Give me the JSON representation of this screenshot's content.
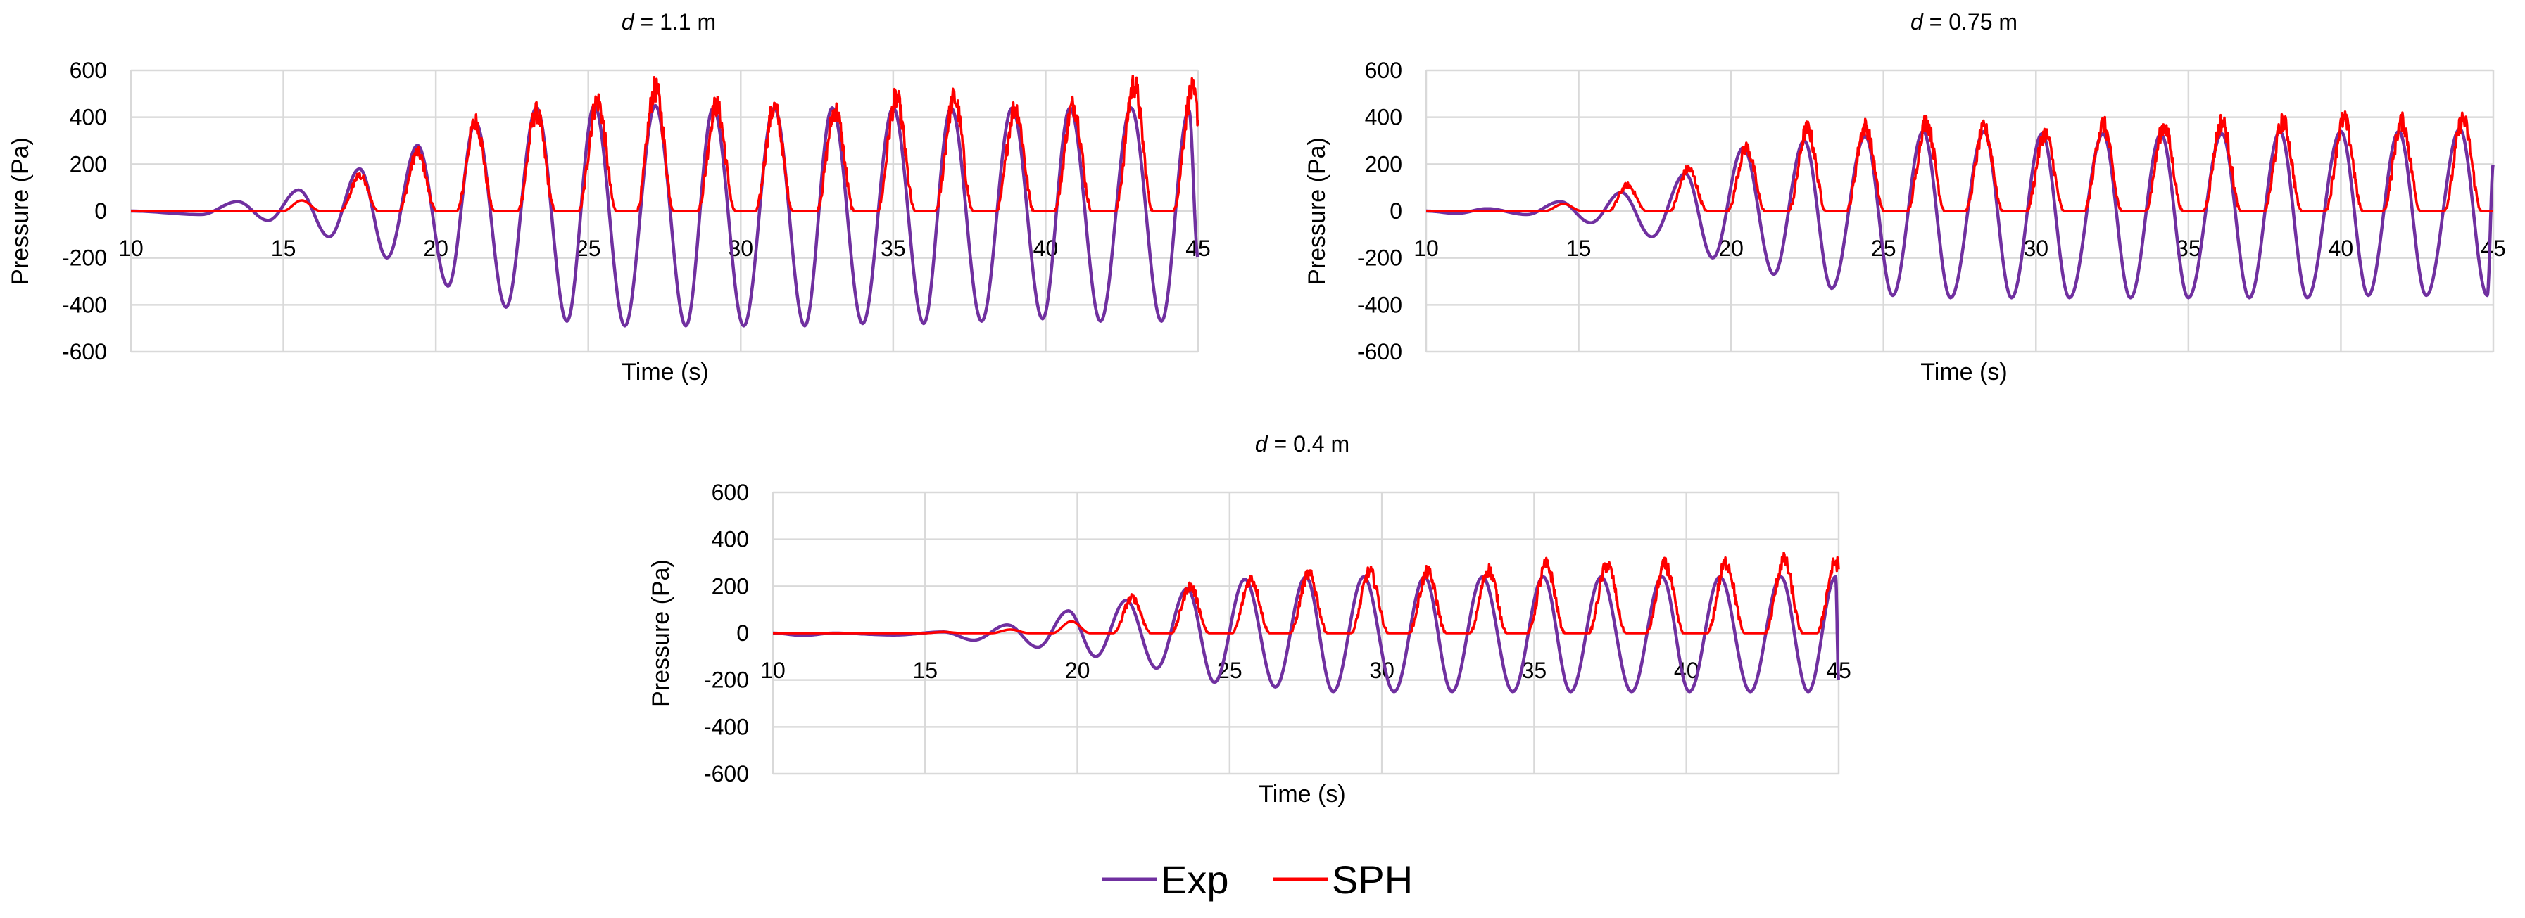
{
  "chart_data": [
    {
      "type": "line",
      "title_var": "d",
      "title_rest": " = 1.1 m",
      "xlabel": "Time (s)",
      "ylabel": "Pressure (Pa)",
      "xlim": [
        10,
        45
      ],
      "ylim": [
        -600,
        600
      ],
      "xticks": [
        10,
        15,
        20,
        25,
        30,
        35,
        40,
        45
      ],
      "yticks": [
        600,
        400,
        200,
        0,
        -200,
        -400,
        -600
      ],
      "series": [
        {
          "name": "Exp",
          "color": "#7030A0",
          "period_s": 1.95,
          "peaks": [
            [
              13.5,
              40
            ],
            [
              15.5,
              90
            ],
            [
              17.5,
              180
            ],
            [
              19.4,
              280
            ],
            [
              21.3,
              380
            ],
            [
              23.3,
              440
            ],
            [
              25.2,
              450
            ],
            [
              27.2,
              450
            ],
            [
              29.1,
              440
            ],
            [
              31.1,
              440
            ],
            [
              33.0,
              440
            ],
            [
              35.0,
              440
            ],
            [
              36.9,
              440
            ],
            [
              38.9,
              440
            ],
            [
              40.8,
              440
            ],
            [
              42.8,
              440
            ],
            [
              44.7,
              430
            ]
          ],
          "troughs": [
            [
              12.3,
              -15
            ],
            [
              14.5,
              -40
            ],
            [
              16.5,
              -110
            ],
            [
              18.4,
              -200
            ],
            [
              20.4,
              -320
            ],
            [
              22.3,
              -410
            ],
            [
              24.3,
              -470
            ],
            [
              26.2,
              -490
            ],
            [
              28.2,
              -490
            ],
            [
              30.1,
              -490
            ],
            [
              32.1,
              -490
            ],
            [
              34.0,
              -480
            ],
            [
              36.0,
              -480
            ],
            [
              37.9,
              -470
            ],
            [
              39.9,
              -460
            ],
            [
              41.8,
              -470
            ],
            [
              43.8,
              -470
            ]
          ]
        },
        {
          "name": "SPH",
          "color": "#FF0000",
          "pulses": [
            [
              15.6,
              45
            ],
            [
              17.5,
              150
            ],
            [
              19.4,
              250
            ],
            [
              21.3,
              380
            ],
            [
              23.3,
              420
            ],
            [
              25.3,
              470
            ],
            [
              27.2,
              520
            ],
            [
              29.2,
              450
            ],
            [
              31.1,
              440
            ],
            [
              33.1,
              430
            ],
            [
              35.1,
              480
            ],
            [
              37.0,
              480
            ],
            [
              39.0,
              440
            ],
            [
              40.9,
              450
            ],
            [
              42.9,
              540
            ],
            [
              44.8,
              510
            ]
          ]
        }
      ]
    },
    {
      "type": "line",
      "title_var": "d",
      "title_rest": " = 0.75 m",
      "xlabel": "Time (s)",
      "ylabel": "Pressure (Pa)",
      "xlim": [
        10,
        45
      ],
      "ylim": [
        -600,
        600
      ],
      "xticks": [
        10,
        15,
        20,
        25,
        30,
        35,
        40,
        45
      ],
      "yticks": [
        600,
        400,
        200,
        0,
        -200,
        -400,
        -600
      ],
      "series": [
        {
          "name": "Exp",
          "color": "#7030A0",
          "period_s": 1.95,
          "peaks": [
            [
              12.0,
              10
            ],
            [
              14.4,
              40
            ],
            [
              16.4,
              80
            ],
            [
              18.5,
              160
            ],
            [
              20.4,
              270
            ],
            [
              22.4,
              300
            ],
            [
              24.4,
              320
            ],
            [
              26.3,
              340
            ],
            [
              28.3,
              340
            ],
            [
              30.2,
              330
            ],
            [
              32.2,
              330
            ],
            [
              34.1,
              330
            ],
            [
              36.1,
              330
            ],
            [
              38.0,
              340
            ],
            [
              40.0,
              340
            ],
            [
              41.9,
              340
            ],
            [
              43.9,
              350
            ]
          ],
          "troughs": [
            [
              11.0,
              -10
            ],
            [
              13.3,
              -15
            ],
            [
              15.4,
              -50
            ],
            [
              17.4,
              -110
            ],
            [
              19.4,
              -200
            ],
            [
              21.4,
              -270
            ],
            [
              23.3,
              -330
            ],
            [
              25.3,
              -360
            ],
            [
              27.2,
              -370
            ],
            [
              29.2,
              -370
            ],
            [
              31.1,
              -370
            ],
            [
              33.1,
              -370
            ],
            [
              35.0,
              -370
            ],
            [
              37.0,
              -370
            ],
            [
              38.9,
              -370
            ],
            [
              40.9,
              -360
            ],
            [
              42.8,
              -360
            ],
            [
              44.8,
              -360
            ]
          ]
        },
        {
          "name": "SPH",
          "color": "#FF0000",
          "pulses": [
            [
              14.5,
              30
            ],
            [
              16.6,
              110
            ],
            [
              18.6,
              180
            ],
            [
              20.5,
              270
            ],
            [
              22.5,
              350
            ],
            [
              24.4,
              360
            ],
            [
              26.4,
              380
            ],
            [
              28.3,
              350
            ],
            [
              30.3,
              330
            ],
            [
              32.2,
              370
            ],
            [
              34.2,
              360
            ],
            [
              36.1,
              380
            ],
            [
              38.1,
              380
            ],
            [
              40.1,
              390
            ],
            [
              42.0,
              380
            ],
            [
              44.0,
              390
            ]
          ]
        }
      ]
    },
    {
      "type": "line",
      "title_var": "d",
      "title_rest": " = 0.4 m",
      "xlabel": "Time (s)",
      "ylabel": "Pressure (Pa)",
      "xlim": [
        10,
        45
      ],
      "ylim": [
        -600,
        600
      ],
      "xticks": [
        10,
        15,
        20,
        25,
        30,
        35,
        40,
        45
      ],
      "yticks": [
        600,
        400,
        200,
        0,
        -200,
        -400,
        -600
      ],
      "series": [
        {
          "name": "Exp",
          "color": "#7030A0",
          "period_s": 1.95,
          "peaks": [
            [
              12.0,
              0
            ],
            [
              15.6,
              5
            ],
            [
              17.7,
              35
            ],
            [
              19.7,
              95
            ],
            [
              21.6,
              140
            ],
            [
              23.6,
              190
            ],
            [
              25.5,
              230
            ],
            [
              27.5,
              240
            ],
            [
              29.4,
              240
            ],
            [
              31.4,
              240
            ],
            [
              33.3,
              240
            ],
            [
              35.3,
              240
            ],
            [
              37.2,
              240
            ],
            [
              39.2,
              240
            ],
            [
              41.1,
              240
            ],
            [
              43.1,
              240
            ],
            [
              44.9,
              240
            ]
          ],
          "troughs": [
            [
              11.0,
              -10
            ],
            [
              14.0,
              -8
            ],
            [
              16.6,
              -30
            ],
            [
              18.7,
              -60
            ],
            [
              20.6,
              -100
            ],
            [
              22.6,
              -150
            ],
            [
              24.5,
              -210
            ],
            [
              26.5,
              -230
            ],
            [
              28.4,
              -250
            ],
            [
              30.4,
              -250
            ],
            [
              32.3,
              -250
            ],
            [
              34.3,
              -250
            ],
            [
              36.2,
              -250
            ],
            [
              38.2,
              -250
            ],
            [
              40.1,
              -250
            ],
            [
              42.1,
              -250
            ],
            [
              44.0,
              -250
            ]
          ]
        },
        {
          "name": "SPH",
          "color": "#FF0000",
          "pulses": [
            [
              15.6,
              5
            ],
            [
              17.8,
              15
            ],
            [
              19.8,
              50
            ],
            [
              21.8,
              150
            ],
            [
              23.7,
              200
            ],
            [
              25.7,
              230
            ],
            [
              27.6,
              250
            ],
            [
              29.6,
              260
            ],
            [
              31.5,
              260
            ],
            [
              33.5,
              270
            ],
            [
              35.4,
              290
            ],
            [
              37.4,
              290
            ],
            [
              39.3,
              290
            ],
            [
              41.3,
              300
            ],
            [
              43.2,
              310
            ],
            [
              44.9,
              300
            ]
          ]
        }
      ]
    }
  ],
  "legend": {
    "entries": [
      {
        "name": "Exp",
        "color": "#7030A0"
      },
      {
        "name": "SPH",
        "color": "#FF0000"
      }
    ]
  }
}
